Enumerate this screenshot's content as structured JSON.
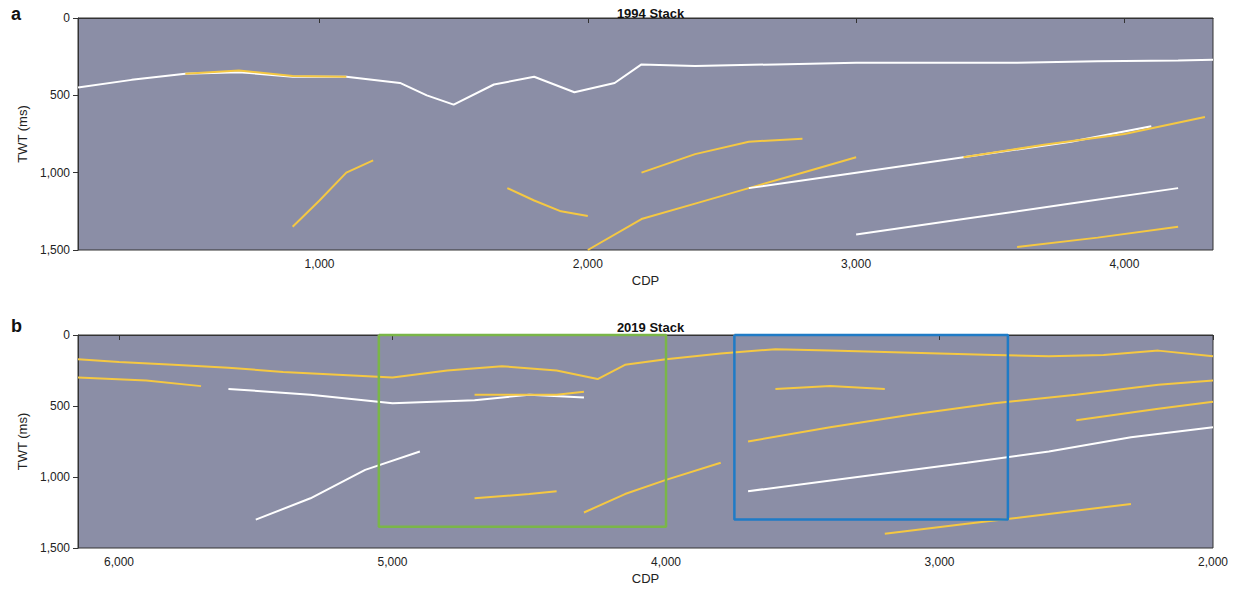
{
  "chart_data": [
    {
      "type": "line",
      "panel": "a",
      "title": "1994 Stack",
      "x_label": "CDP",
      "y_label": "TWT (ms)",
      "xlim": [
        100,
        4330
      ],
      "xticks": [
        1000,
        2000,
        3000,
        4000
      ],
      "ylim": [
        1500,
        0
      ],
      "yticks": [
        0,
        500,
        1000,
        1500
      ],
      "grid": false,
      "series": [
        {
          "color": "#ffffff",
          "x": [
            100,
            300,
            500,
            700,
            900,
            1100,
            1300,
            1400,
            1500,
            1650,
            1800,
            1950,
            2100,
            2200,
            2400,
            2700,
            3000,
            3300,
            3600,
            3900,
            4200,
            4330
          ],
          "values": [
            450,
            400,
            360,
            350,
            380,
            380,
            420,
            500,
            560,
            430,
            380,
            480,
            420,
            300,
            310,
            300,
            290,
            290,
            290,
            280,
            275,
            270
          ]
        },
        {
          "color": "#f5c842",
          "x": [
            500,
            700,
            900,
            1100
          ],
          "values": [
            360,
            340,
            375,
            380
          ]
        },
        {
          "color": "#f5c842",
          "x": [
            900,
            1000,
            1100,
            1200
          ],
          "values": [
            1350,
            1180,
            1000,
            920
          ]
        },
        {
          "color": "#f5c842",
          "x": [
            1700,
            1800,
            1900,
            2000
          ],
          "values": [
            1100,
            1180,
            1250,
            1280
          ]
        },
        {
          "color": "#f5c842",
          "x": [
            2000,
            2200,
            2400,
            2600,
            2800,
            3000
          ],
          "values": [
            1500,
            1300,
            1200,
            1100,
            1000,
            900
          ]
        },
        {
          "color": "#f5c842",
          "x": [
            2200,
            2400,
            2600,
            2800
          ],
          "values": [
            1000,
            880,
            800,
            780
          ]
        },
        {
          "color": "#ffffff",
          "x": [
            2600,
            3000,
            3400,
            3800,
            4100
          ],
          "values": [
            1100,
            1000,
            900,
            800,
            700
          ]
        },
        {
          "color": "#f5c842",
          "x": [
            3400,
            3700,
            4000,
            4300
          ],
          "values": [
            900,
            820,
            750,
            640
          ]
        },
        {
          "color": "#ffffff",
          "x": [
            3000,
            3400,
            3800,
            4200
          ],
          "values": [
            1400,
            1300,
            1200,
            1100
          ]
        },
        {
          "color": "#f5c842",
          "x": [
            3600,
            3900,
            4200
          ],
          "values": [
            1480,
            1420,
            1350
          ]
        }
      ]
    },
    {
      "type": "line",
      "panel": "b",
      "title": "2019 Stack",
      "x_label": "CDP",
      "y_label": "TWT (ms)",
      "xlim": [
        6150,
        2000
      ],
      "xticks": [
        6000,
        5000,
        4000,
        3000,
        2000
      ],
      "ylim": [
        1500,
        0
      ],
      "yticks": [
        0,
        500,
        1000,
        1500
      ],
      "grid": false,
      "series": [
        {
          "color": "#f5c842",
          "x": [
            6150,
            6000,
            5800,
            5600,
            5400,
            5200,
            5000,
            4800,
            4600,
            4400,
            4250,
            4150,
            4000,
            3800,
            3600,
            3400,
            3200,
            3000,
            2800,
            2600,
            2400,
            2200,
            2000
          ],
          "values": [
            170,
            190,
            210,
            230,
            260,
            280,
            300,
            250,
            220,
            250,
            310,
            210,
            170,
            130,
            100,
            110,
            120,
            130,
            140,
            150,
            140,
            110,
            150
          ]
        },
        {
          "color": "#f5c842",
          "x": [
            6150,
            5900,
            5700
          ],
          "values": [
            300,
            320,
            360
          ]
        },
        {
          "color": "#ffffff",
          "x": [
            5600,
            5300,
            5000,
            4700,
            4500,
            4300
          ],
          "values": [
            380,
            420,
            480,
            460,
            420,
            440
          ]
        },
        {
          "color": "#f5c842",
          "x": [
            4700,
            4400,
            4300
          ],
          "values": [
            420,
            420,
            400
          ]
        },
        {
          "color": "#ffffff",
          "x": [
            5500,
            5300,
            5100,
            4900
          ],
          "values": [
            1300,
            1150,
            950,
            820
          ]
        },
        {
          "color": "#f5c842",
          "x": [
            4700,
            4500,
            4400
          ],
          "values": [
            1150,
            1120,
            1100
          ]
        },
        {
          "color": "#f5c842",
          "x": [
            4300,
            4150,
            4000,
            3800
          ],
          "values": [
            1250,
            1120,
            1020,
            900
          ]
        },
        {
          "color": "#f5c842",
          "x": [
            3600,
            3400,
            3200
          ],
          "values": [
            380,
            360,
            380
          ]
        },
        {
          "color": "#f5c842",
          "x": [
            3700,
            3400,
            3100,
            2800,
            2500,
            2200,
            2000
          ],
          "values": [
            750,
            650,
            560,
            480,
            420,
            350,
            320
          ]
        },
        {
          "color": "#ffffff",
          "x": [
            3700,
            3300,
            2900,
            2600,
            2300,
            2000
          ],
          "values": [
            1100,
            1000,
            900,
            820,
            720,
            650
          ]
        },
        {
          "color": "#f5c842",
          "x": [
            3200,
            2900,
            2600,
            2300
          ],
          "values": [
            1400,
            1330,
            1260,
            1190
          ]
        },
        {
          "color": "#f5c842",
          "x": [
            2500,
            2200,
            2000
          ],
          "values": [
            600,
            520,
            470
          ]
        }
      ],
      "boxes": [
        {
          "color": "#7ab648",
          "x": [
            5050,
            4000
          ],
          "y": [
            0,
            1350
          ]
        },
        {
          "color": "#1f7bc6",
          "x": [
            3750,
            2750
          ],
          "y": [
            0,
            1300
          ]
        }
      ]
    }
  ]
}
